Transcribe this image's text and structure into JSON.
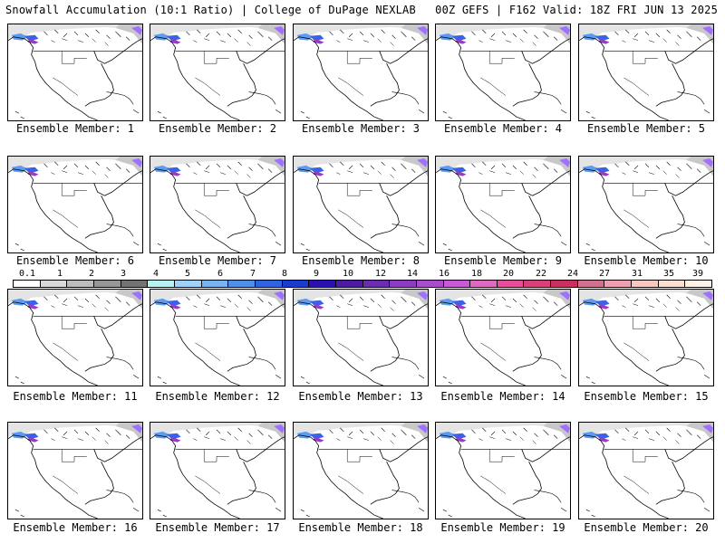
{
  "header": {
    "title_left": "Snowfall Accumulation (10:1 Ratio) | College of DuPage NEXLAB",
    "title_right": "00Z GEFS | F162 Valid: 18Z FRI JUN 13 2025"
  },
  "members": [
    "Ensemble Member: 1",
    "Ensemble Member: 2",
    "Ensemble Member: 3",
    "Ensemble Member: 4",
    "Ensemble Member: 5",
    "Ensemble Member: 6",
    "Ensemble Member: 7",
    "Ensemble Member: 8",
    "Ensemble Member: 9",
    "Ensemble Member: 10",
    "Ensemble Member: 11",
    "Ensemble Member: 12",
    "Ensemble Member: 13",
    "Ensemble Member: 14",
    "Ensemble Member: 15",
    "Ensemble Member: 16",
    "Ensemble Member: 17",
    "Ensemble Member: 18",
    "Ensemble Member: 19",
    "Ensemble Member: 20"
  ],
  "legend": {
    "tick_labels": [
      "0.1",
      "1",
      "2",
      "3",
      "4",
      "5",
      "6",
      "7",
      "8",
      "9",
      "10",
      "12",
      "14",
      "16",
      "18",
      "20",
      "22",
      "24",
      "27",
      "31",
      "35",
      "39"
    ],
    "colors": [
      "#ffffff",
      "#d9d9d9",
      "#bdbdbd",
      "#969696",
      "#737373",
      "#b5f2f0",
      "#9ed2fa",
      "#78b4f2",
      "#4f8fe6",
      "#2f64e0",
      "#1a3ccc",
      "#2a10b0",
      "#4b1ca0",
      "#6b2cb0",
      "#8c3cc0",
      "#aa4ccc",
      "#c85ad6",
      "#e06ac0",
      "#e6509a",
      "#d8407a",
      "#c83060",
      "#d27090",
      "#eea0b0",
      "#f5c8c0",
      "#fae0d0",
      "#fdf0e6"
    ]
  }
}
